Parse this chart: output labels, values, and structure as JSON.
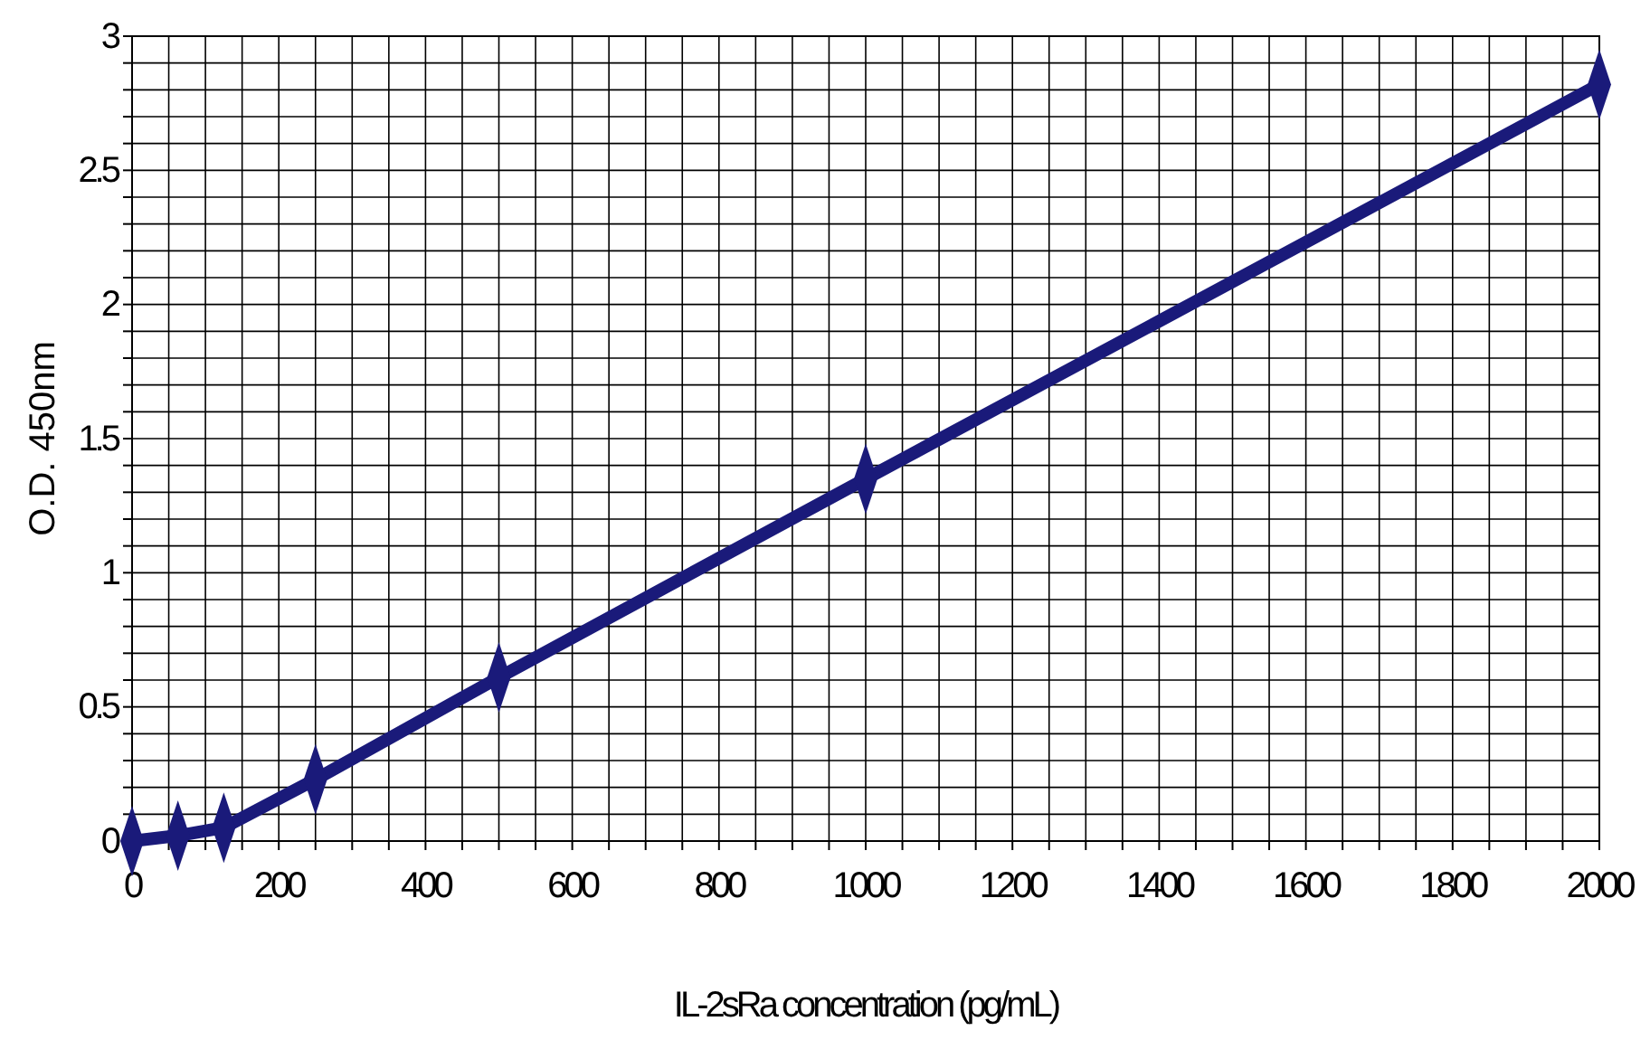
{
  "chart_data": {
    "type": "line",
    "xlabel": "IL-2sRa concentration (pg/mL)",
    "ylabel": "O.D. 450nm",
    "x": [
      0,
      62.5,
      125,
      250,
      500,
      1000,
      2000
    ],
    "series": [
      {
        "color": "#1a1a7a",
        "values": [
          0,
          0.02,
          0.05,
          0.23,
          0.61,
          1.35,
          2.82
        ]
      }
    ],
    "marker": "diamond",
    "line_style": "solid",
    "grid": true,
    "xlim": [
      0,
      2000
    ],
    "ylim": [
      0,
      3
    ],
    "xticks": [
      0,
      {
        "value": 50,
        "label": null
      },
      {
        "value": 100,
        "label": null
      },
      {
        "value": 150,
        "label": null
      },
      200,
      {
        "value": 250,
        "label": null
      },
      {
        "value": 300,
        "label": null
      },
      {
        "value": 350,
        "label": null
      },
      400,
      {
        "value": 450,
        "label": null
      },
      {
        "value": 500,
        "label": null
      },
      {
        "value": 550,
        "label": null
      },
      600,
      {
        "value": 650,
        "label": null
      },
      {
        "value": 700,
        "label": null
      },
      {
        "value": 750,
        "label": null
      },
      800,
      {
        "value": 850,
        "label": null
      },
      {
        "value": 900,
        "label": null
      },
      {
        "value": 950,
        "label": null
      },
      1000,
      {
        "value": 1050,
        "label": null
      },
      {
        "value": 1100,
        "label": null
      },
      {
        "value": 1150,
        "label": null
      },
      1200,
      {
        "value": 1250,
        "label": null
      },
      {
        "value": 1300,
        "label": null
      },
      {
        "value": 1350,
        "label": null
      },
      1400,
      {
        "value": 1450,
        "label": null
      },
      {
        "value": 1500,
        "label": null
      },
      {
        "value": 1550,
        "label": null
      },
      1600,
      {
        "value": 1650,
        "label": null
      },
      {
        "value": 1700,
        "label": null
      },
      {
        "value": 1750,
        "label": null
      },
      1800,
      {
        "value": 1850,
        "label": null
      },
      {
        "value": 1900,
        "label": null
      },
      {
        "value": 1950,
        "label": null
      },
      2000
    ],
    "yticks": [
      0,
      {
        "value": 0.1,
        "label": null
      },
      {
        "value": 0.2,
        "label": null
      },
      {
        "value": 0.3,
        "label": null
      },
      {
        "value": 0.4,
        "label": null
      },
      0.5,
      {
        "value": 0.6,
        "label": null
      },
      {
        "value": 0.7,
        "label": null
      },
      {
        "value": 0.8,
        "label": null
      },
      {
        "value": 0.9,
        "label": null
      },
      1,
      {
        "value": 1.1,
        "label": null
      },
      {
        "value": 1.2,
        "label": null
      },
      {
        "value": 1.3,
        "label": null
      },
      {
        "value": 1.4,
        "label": null
      },
      1.5,
      {
        "value": 1.6,
        "label": null
      },
      {
        "value": 1.7,
        "label": null
      },
      {
        "value": 1.8,
        "label": null
      },
      {
        "value": 1.9,
        "label": null
      },
      2,
      {
        "value": 2.1,
        "label": null
      },
      {
        "value": 2.2,
        "label": null
      },
      {
        "value": 2.3,
        "label": null
      },
      {
        "value": 2.4,
        "label": null
      },
      2.5,
      {
        "value": 2.6,
        "label": null
      },
      {
        "value": 2.7,
        "label": null
      },
      {
        "value": 2.8,
        "label": null
      },
      {
        "value": 2.9,
        "label": null
      },
      3
    ]
  }
}
